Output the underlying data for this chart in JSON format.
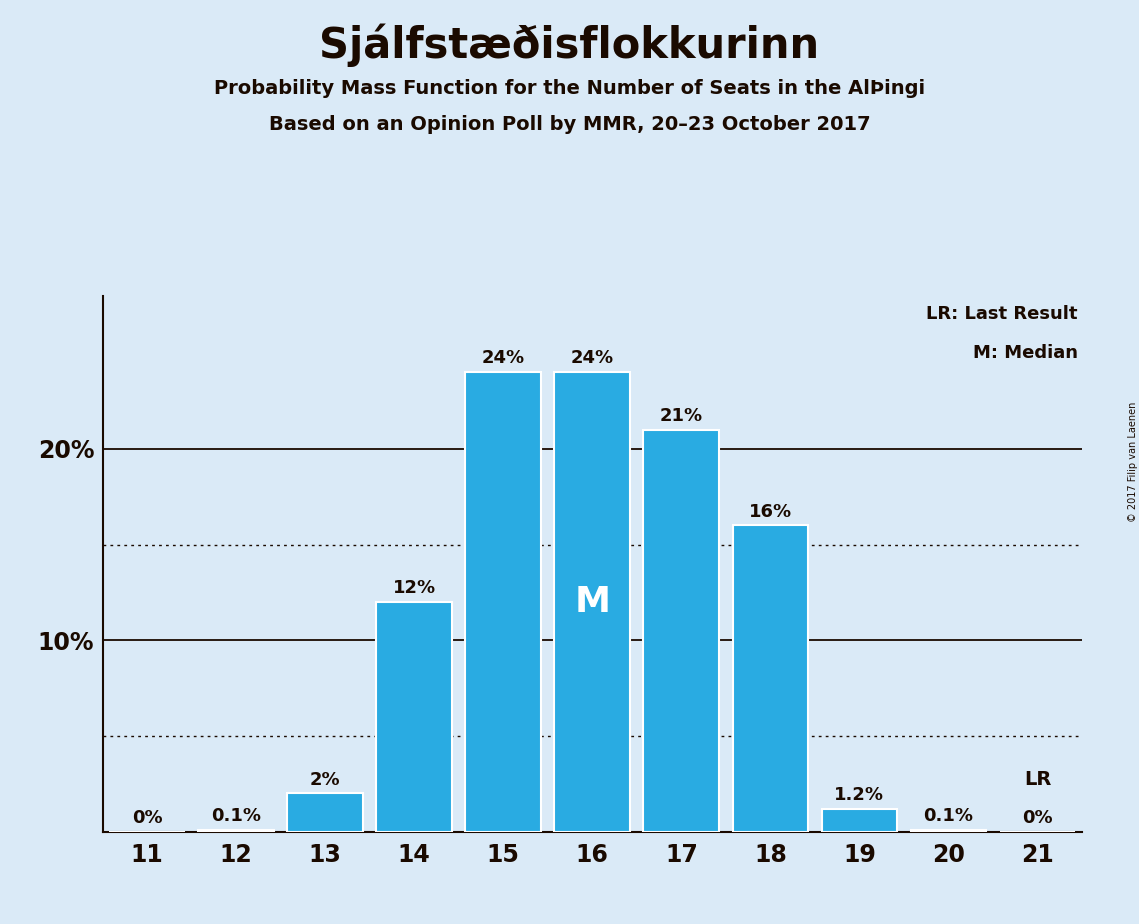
{
  "title": "Sjálfstæðisflokkurinn",
  "subtitle1": "Probability Mass Function for the Number of Seats in the AlÞingi",
  "subtitle2": "Based on an Opinion Poll by MMR, 20–23 October 2017",
  "copyright": "© 2017 Filip van Laenen",
  "seats": [
    11,
    12,
    13,
    14,
    15,
    16,
    17,
    18,
    19,
    20,
    21
  ],
  "values": [
    0.0,
    0.1,
    2.0,
    12.0,
    24.0,
    24.0,
    21.0,
    16.0,
    1.2,
    0.1,
    0.0
  ],
  "bar_color": "#29ABE2",
  "bar_edge_color": "#ffffff",
  "background_color": "#daeaf7",
  "text_color": "#1a0a00",
  "median_seat": 16,
  "median_label": "M",
  "lr_seat": 21,
  "lr_label": "LR",
  "legend_lr": "LR: Last Result",
  "legend_m": "M: Median",
  "solid_lines": [
    10.0,
    20.0
  ],
  "dotted_lines": [
    5.0,
    15.0
  ],
  "ylim": [
    0,
    28
  ],
  "xlim": [
    10.5,
    21.5
  ]
}
